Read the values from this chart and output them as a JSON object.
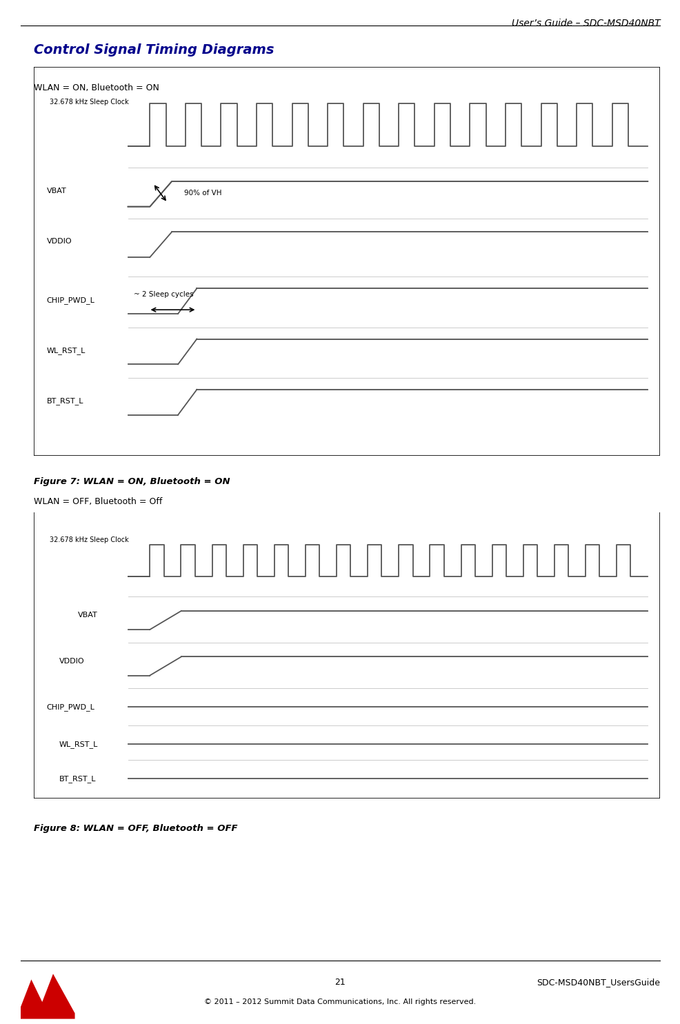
{
  "page_title": "User’s Guide – SDC-MSD40NBT",
  "section_title": "Control Signal Timing Diagrams",
  "fig7_label": "WLAN = ON, Bluetooth = ON",
  "fig7_caption": "Figure 7: WLAN = ON, Bluetooth = ON",
  "fig8_label": "WLAN = OFF, Bluetooth = Off",
  "fig8_caption": "Figure 8: WLAN = OFF, Bluetooth = OFF",
  "footer_page": "21",
  "footer_right": "SDC-MSD40NBT_UsersGuide",
  "footer_copy": "© 2011 – 2012 Summit Data Communications, Inc. All rights reserved.",
  "title_color": "#00008B",
  "body_color": "#000000",
  "signal_color": "#555555",
  "box_color": "#000000",
  "bg_color": "#ffffff"
}
